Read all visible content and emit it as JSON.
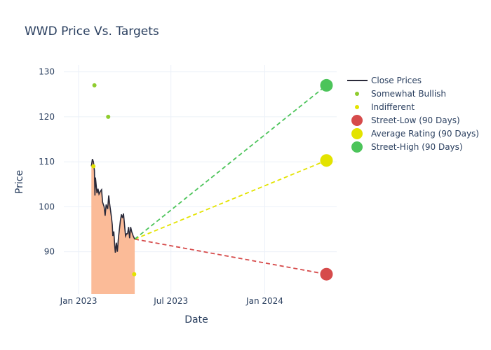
{
  "chart_data": {
    "type": "line",
    "title": "WWD Price Vs. Targets",
    "xlabel": "Date",
    "ylabel": "Price",
    "xlim": [
      "2022-12-03",
      "2024-05-21"
    ],
    "ylim": [
      80.6,
      131.5
    ],
    "x_ticks": [
      {
        "date": "2023-01-01",
        "label": "Jan 2023"
      },
      {
        "date": "2023-07-01",
        "label": "Jul 2023"
      },
      {
        "date": "2024-01-01",
        "label": "Jan 2024"
      }
    ],
    "y_ticks": [
      90,
      100,
      110,
      120,
      130
    ],
    "grid": true,
    "legend_position": "top-right",
    "close_prices": {
      "name": "Close Prices",
      "color": "#2a2a3a",
      "fill_color": "#fbbb98",
      "points": [
        [
          "2023-01-26",
          109.0
        ],
        [
          "2023-01-28",
          110.6
        ],
        [
          "2023-01-30",
          110.0
        ],
        [
          "2023-02-01",
          108.0
        ],
        [
          "2023-02-02",
          102.5
        ],
        [
          "2023-02-03",
          106.5
        ],
        [
          "2023-02-06",
          103.0
        ],
        [
          "2023-02-08",
          104.0
        ],
        [
          "2023-02-10",
          102.8
        ],
        [
          "2023-02-13",
          103.5
        ],
        [
          "2023-02-15",
          103.8
        ],
        [
          "2023-02-17",
          101.0
        ],
        [
          "2023-02-20",
          100.0
        ],
        [
          "2023-02-22",
          98.0
        ],
        [
          "2023-02-24",
          100.5
        ],
        [
          "2023-02-27",
          99.5
        ],
        [
          "2023-03-01",
          102.5
        ],
        [
          "2023-03-03",
          100.5
        ],
        [
          "2023-03-06",
          98.0
        ],
        [
          "2023-03-08",
          96.0
        ],
        [
          "2023-03-09",
          93.5
        ],
        [
          "2023-03-11",
          94.5
        ],
        [
          "2023-03-13",
          91.0
        ],
        [
          "2023-03-14",
          89.8
        ],
        [
          "2023-03-16",
          92.0
        ],
        [
          "2023-03-18",
          90.0
        ],
        [
          "2023-03-20",
          93.0
        ],
        [
          "2023-03-22",
          95.0
        ],
        [
          "2023-03-24",
          97.0
        ],
        [
          "2023-03-26",
          98.3
        ],
        [
          "2023-03-28",
          97.5
        ],
        [
          "2023-03-30",
          98.5
        ],
        [
          "2023-04-01",
          96.0
        ],
        [
          "2023-04-03",
          93.5
        ],
        [
          "2023-04-05",
          94.0
        ],
        [
          "2023-04-07",
          94.0
        ],
        [
          "2023-04-09",
          95.5
        ],
        [
          "2023-04-11",
          93.0
        ],
        [
          "2023-04-13",
          95.5
        ],
        [
          "2023-04-15",
          94.5
        ],
        [
          "2023-04-18",
          93.5
        ],
        [
          "2023-04-21",
          92.8
        ]
      ]
    },
    "analyst_ratings": [
      {
        "name": "Somewhat Bullish",
        "color": "#8fcc2e",
        "points": [
          [
            "2023-02-01",
            127.0
          ],
          [
            "2023-02-28",
            120.0
          ]
        ]
      },
      {
        "name": "Indifferent",
        "color": "#e3e300",
        "points": [
          [
            "2023-01-30",
            109.0
          ],
          [
            "2023-04-20",
            85.0
          ]
        ]
      }
    ],
    "targets": [
      {
        "name": "Street-Low (90 Days)",
        "color": "#d64b4b",
        "start": [
          "2023-04-21",
          92.8
        ],
        "end": [
          "2024-05-01",
          85.0
        ]
      },
      {
        "name": "Average Rating (90 Days)",
        "color": "#e3e300",
        "start": [
          "2023-04-21",
          92.8
        ],
        "end": [
          "2024-05-01",
          110.3
        ]
      },
      {
        "name": "Street-High (90 Days)",
        "color": "#4cc45a",
        "start": [
          "2023-04-21",
          92.8
        ],
        "end": [
          "2024-05-01",
          127.0
        ]
      }
    ],
    "legend": [
      {
        "label": "Close Prices",
        "symbol": "line",
        "color": "#2a2a3a"
      },
      {
        "label": "Somewhat Bullish",
        "symbol": "small-dot",
        "color": "#8fcc2e"
      },
      {
        "label": "Indifferent",
        "symbol": "small-dot",
        "color": "#e3e300"
      },
      {
        "label": "Street-Low (90 Days)",
        "symbol": "big-dot",
        "color": "#d64b4b"
      },
      {
        "label": "Average Rating (90 Days)",
        "symbol": "big-dot",
        "color": "#e3e300"
      },
      {
        "label": "Street-High (90 Days)",
        "symbol": "big-dot",
        "color": "#4cc45a"
      }
    ]
  }
}
